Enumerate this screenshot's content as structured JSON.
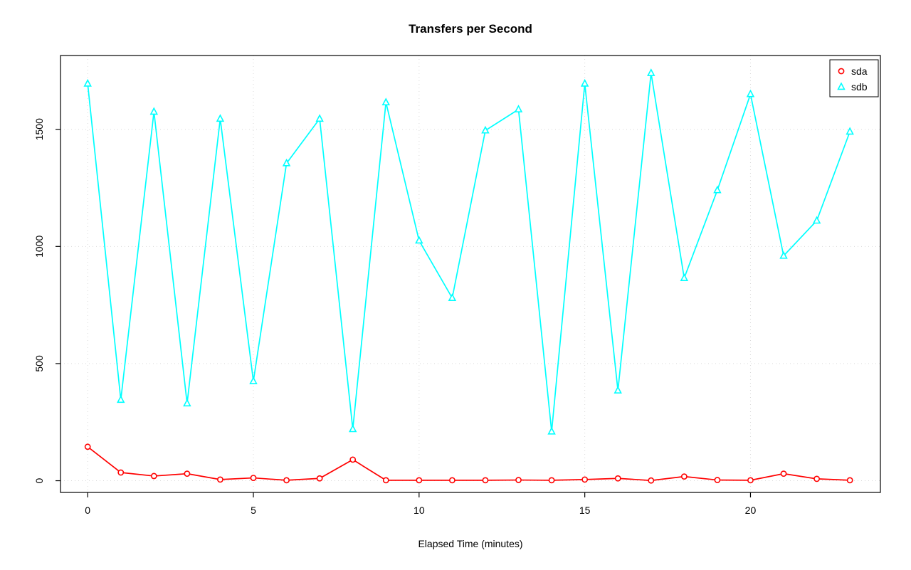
{
  "chart_data": {
    "type": "line",
    "title": "Transfers per Second",
    "xlabel": "Elapsed Time (minutes)",
    "ylabel": "",
    "grid": true,
    "legend_position": "top-right",
    "xticks": [
      0,
      5,
      10,
      15,
      20
    ],
    "yticks": [
      0,
      500,
      1000,
      1500
    ],
    "xlim": [
      -0.82,
      23.92
    ],
    "ylim": [
      -50,
      1815
    ],
    "x": [
      0,
      1,
      2,
      3,
      4,
      5,
      6,
      7,
      8,
      9,
      10,
      11,
      12,
      13,
      14,
      15,
      16,
      17,
      18,
      19,
      20,
      21,
      22,
      23
    ],
    "series": [
      {
        "name": "sda",
        "color": "#FF0000",
        "marker": "circle",
        "values": [
          145,
          35,
          20,
          30,
          5,
          12,
          2,
          10,
          90,
          2,
          2,
          2,
          2,
          3,
          2,
          5,
          10,
          1,
          18,
          3,
          2,
          30,
          8,
          2
        ]
      },
      {
        "name": "sdb",
        "color": "#00FFFF",
        "marker": "triangle",
        "values": [
          1695,
          345,
          1575,
          330,
          1545,
          425,
          1355,
          1545,
          220,
          1615,
          1025,
          780,
          1495,
          1585,
          210,
          1695,
          385,
          1740,
          865,
          1240,
          1650,
          960,
          1110,
          1490
        ]
      }
    ]
  }
}
